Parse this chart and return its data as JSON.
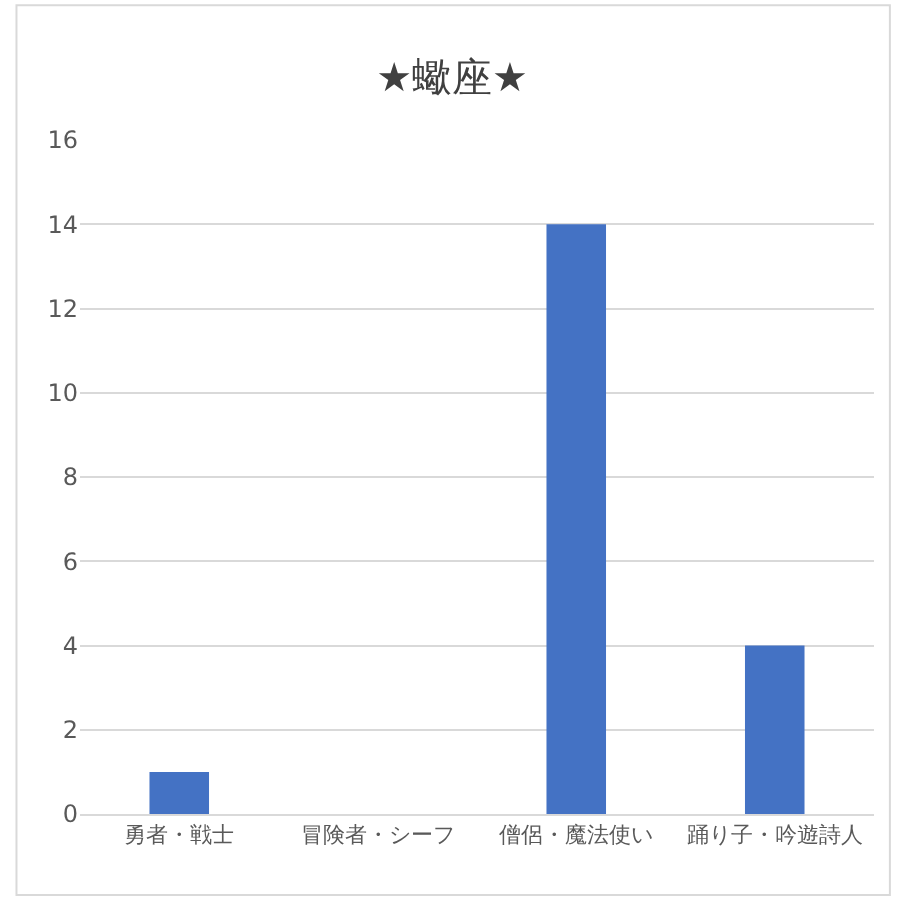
{
  "chart_data": {
    "type": "bar",
    "title": "★蠍座★",
    "categories": [
      "勇者・戦士",
      "冒険者・シーフ",
      "僧侶・魔法使い",
      "踊り子・吟遊詩人"
    ],
    "values": [
      1,
      0,
      14,
      4
    ],
    "color": "#4472c4",
    "ylim": [
      0,
      16
    ],
    "yticks": [
      0,
      2,
      4,
      6,
      8,
      10,
      12,
      14,
      16
    ],
    "grid": "y"
  }
}
